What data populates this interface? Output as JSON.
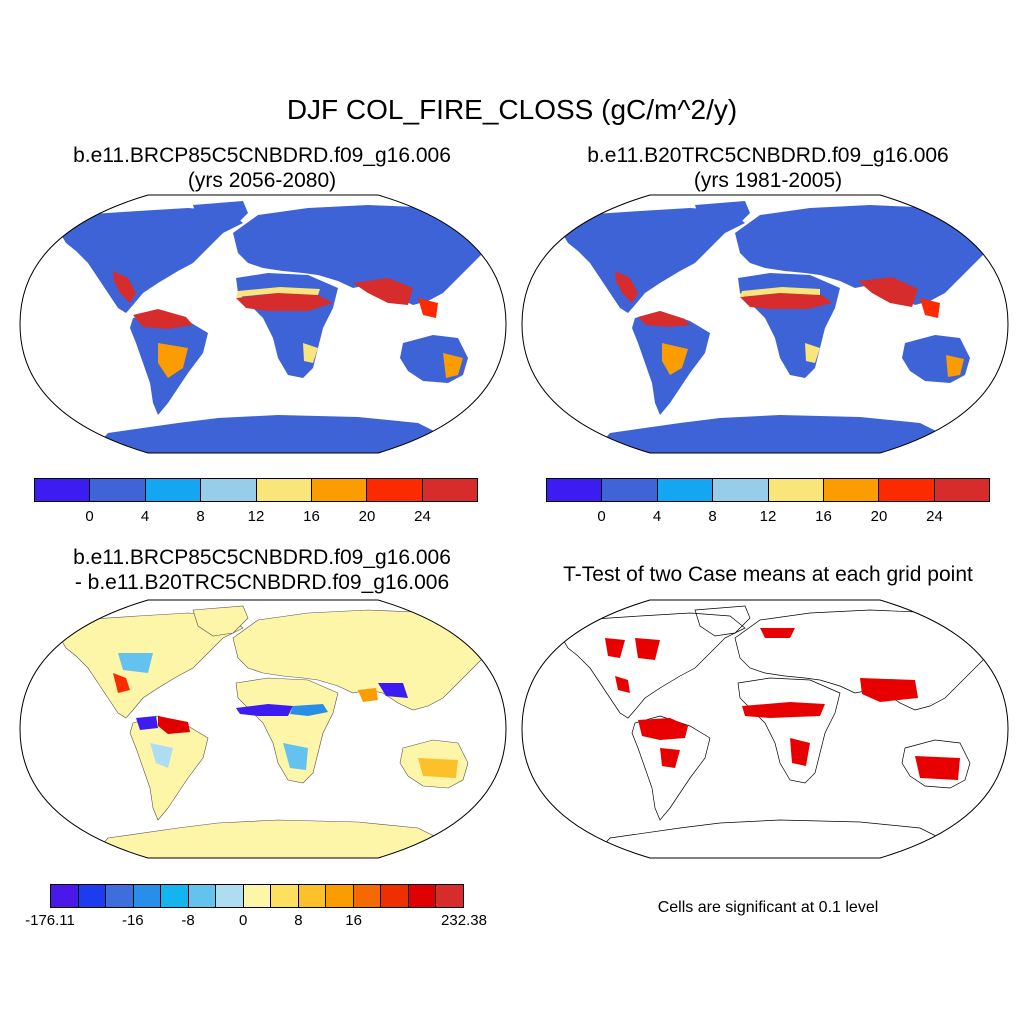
{
  "title": "DJF COL_FIRE_CLOSS (gC/m^2/y)",
  "panels": [
    {
      "title_line1": "b.e11.BRCP85C5CNBDRD.f09_g16.006",
      "title_line2": "(yrs 2056-2080)"
    },
    {
      "title_line1": "b.e11.B20TRC5CNBDRD.f09_g16.006",
      "title_line2": "(yrs 1981-2005)"
    },
    {
      "title_line1": "b.e11.BRCP85C5CNBDRD.f09_g16.006",
      "title_line2": "- b.e11.B20TRC5CNBDRD.f09_g16.006"
    },
    {
      "title_line1": "T-Test of two Case means at each grid point"
    }
  ],
  "colorbar_abs": {
    "colors": [
      "#3c1cf0",
      "#3e64d8",
      "#14a6f0",
      "#98cdea",
      "#f9e57a",
      "#fb9c00",
      "#fb2a00",
      "#d62c2c"
    ],
    "tick_labels": [
      "0",
      "4",
      "8",
      "12",
      "16",
      "20",
      "24"
    ]
  },
  "colorbar_diff": {
    "colors": [
      "#4a18e8",
      "#1c3cf0",
      "#3e6edc",
      "#288ee8",
      "#14b4f0",
      "#64c2ee",
      "#aedcf0",
      "#fdf5a8",
      "#fde060",
      "#fbc02a",
      "#fb9c00",
      "#f46a00",
      "#ee3000",
      "#e00000",
      "#d62c2c"
    ],
    "tick_labels": [
      "-176.11",
      "-16",
      "-8",
      "0",
      "8",
      "16",
      "232.38"
    ]
  },
  "note": "Cells are significant at 0.1 level",
  "colors": {
    "land_low": "#3d63d6",
    "land_diff": "#fdf5a8",
    "ocean": "#ffffff",
    "hot": "#d62c2c",
    "warm": "#fb9c00",
    "mid": "#f9e57a",
    "significant": "#e80000",
    "negative": "#3c1cf0"
  }
}
